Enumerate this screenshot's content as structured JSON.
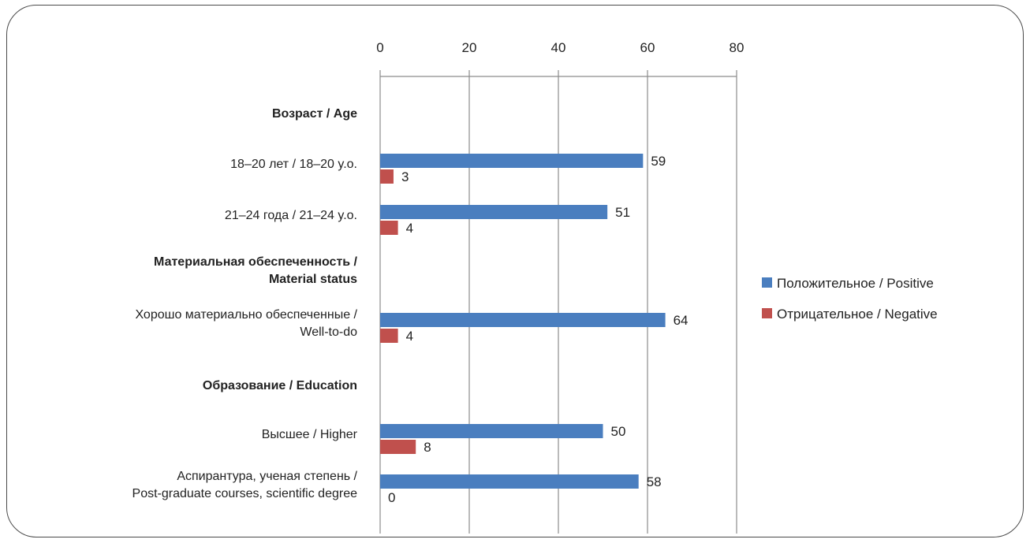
{
  "chart_data": {
    "type": "bar",
    "orientation": "horizontal",
    "x_ticks": [
      "0",
      "20",
      "40",
      "60",
      "80"
    ],
    "xlim": [
      0,
      80
    ],
    "grid": true,
    "legend_position": "right",
    "categories": [
      {
        "lines": [
          "Возраст / Age"
        ],
        "header": true
      },
      {
        "lines": [
          "18–20 лет / 18–20 y.o."
        ],
        "header": false
      },
      {
        "lines": [
          "21–24 года / 21–24 y.o."
        ],
        "header": false
      },
      {
        "lines": [
          "Материальная обеспеченность /",
          "Material status"
        ],
        "header": true
      },
      {
        "lines": [
          "Хорошо материально обеспеченные /",
          "Well-to-do"
        ],
        "header": false
      },
      {
        "lines": [
          "Образование / Education"
        ],
        "header": true
      },
      {
        "lines": [
          "Высшее / Higher"
        ],
        "header": false
      },
      {
        "lines": [
          "Аспирантура, ученая степень /",
          "Post-graduate courses, scientific degree"
        ],
        "header": false
      }
    ],
    "series": [
      {
        "name": "Положительное / Positive",
        "color": "#4a7ebf",
        "values": [
          null,
          59,
          51,
          null,
          64,
          null,
          50,
          58
        ]
      },
      {
        "name": "Отрицательное / Negative",
        "color": "#c0504d",
        "values": [
          null,
          3,
          4,
          null,
          4,
          null,
          8,
          0
        ]
      }
    ]
  }
}
